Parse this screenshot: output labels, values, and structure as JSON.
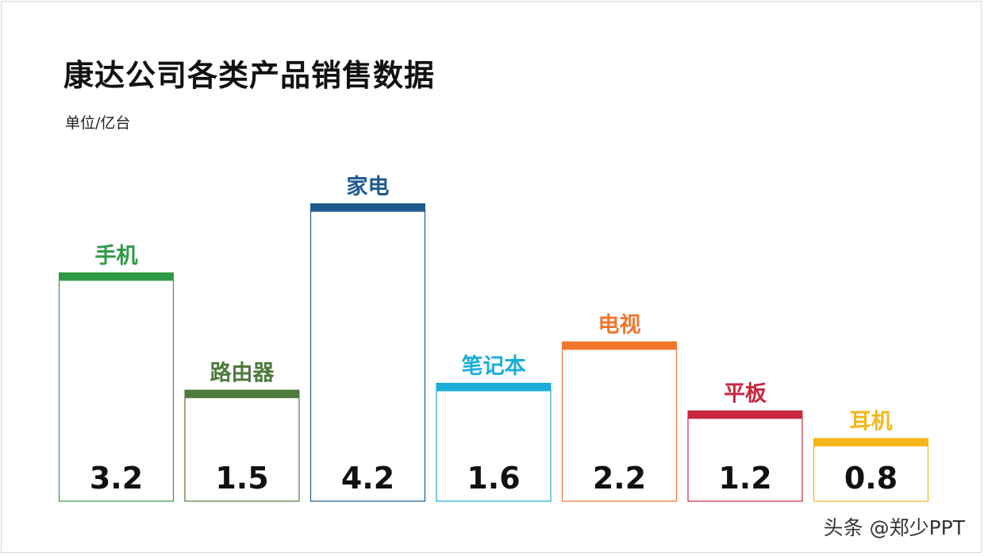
{
  "title": "康达公司各类产品销售数据",
  "subtitle": "单位/亿台",
  "watermark": "头条 @郑少PPT",
  "chart_data": {
    "type": "bar",
    "title": "康达公司各类产品销售数据",
    "ylabel": "单位/亿台",
    "xlabel": "",
    "ylim": [
      0,
      4.2
    ],
    "grid": false,
    "legend": "none",
    "categories": [
      "手机",
      "路由器",
      "家电",
      "笔记本",
      "电视",
      "平板",
      "耳机"
    ],
    "values": [
      3.2,
      1.5,
      4.2,
      1.6,
      2.2,
      1.2,
      0.8
    ],
    "value_labels": [
      "3.2",
      "1.5",
      "4.2",
      "1.6",
      "2.2",
      "1.2",
      "0.8"
    ],
    "colors": [
      "#2e9a46",
      "#4d7a3c",
      "#1f5a8e",
      "#1aaed8",
      "#f2762e",
      "#c8283e",
      "#f5b61a"
    ]
  }
}
